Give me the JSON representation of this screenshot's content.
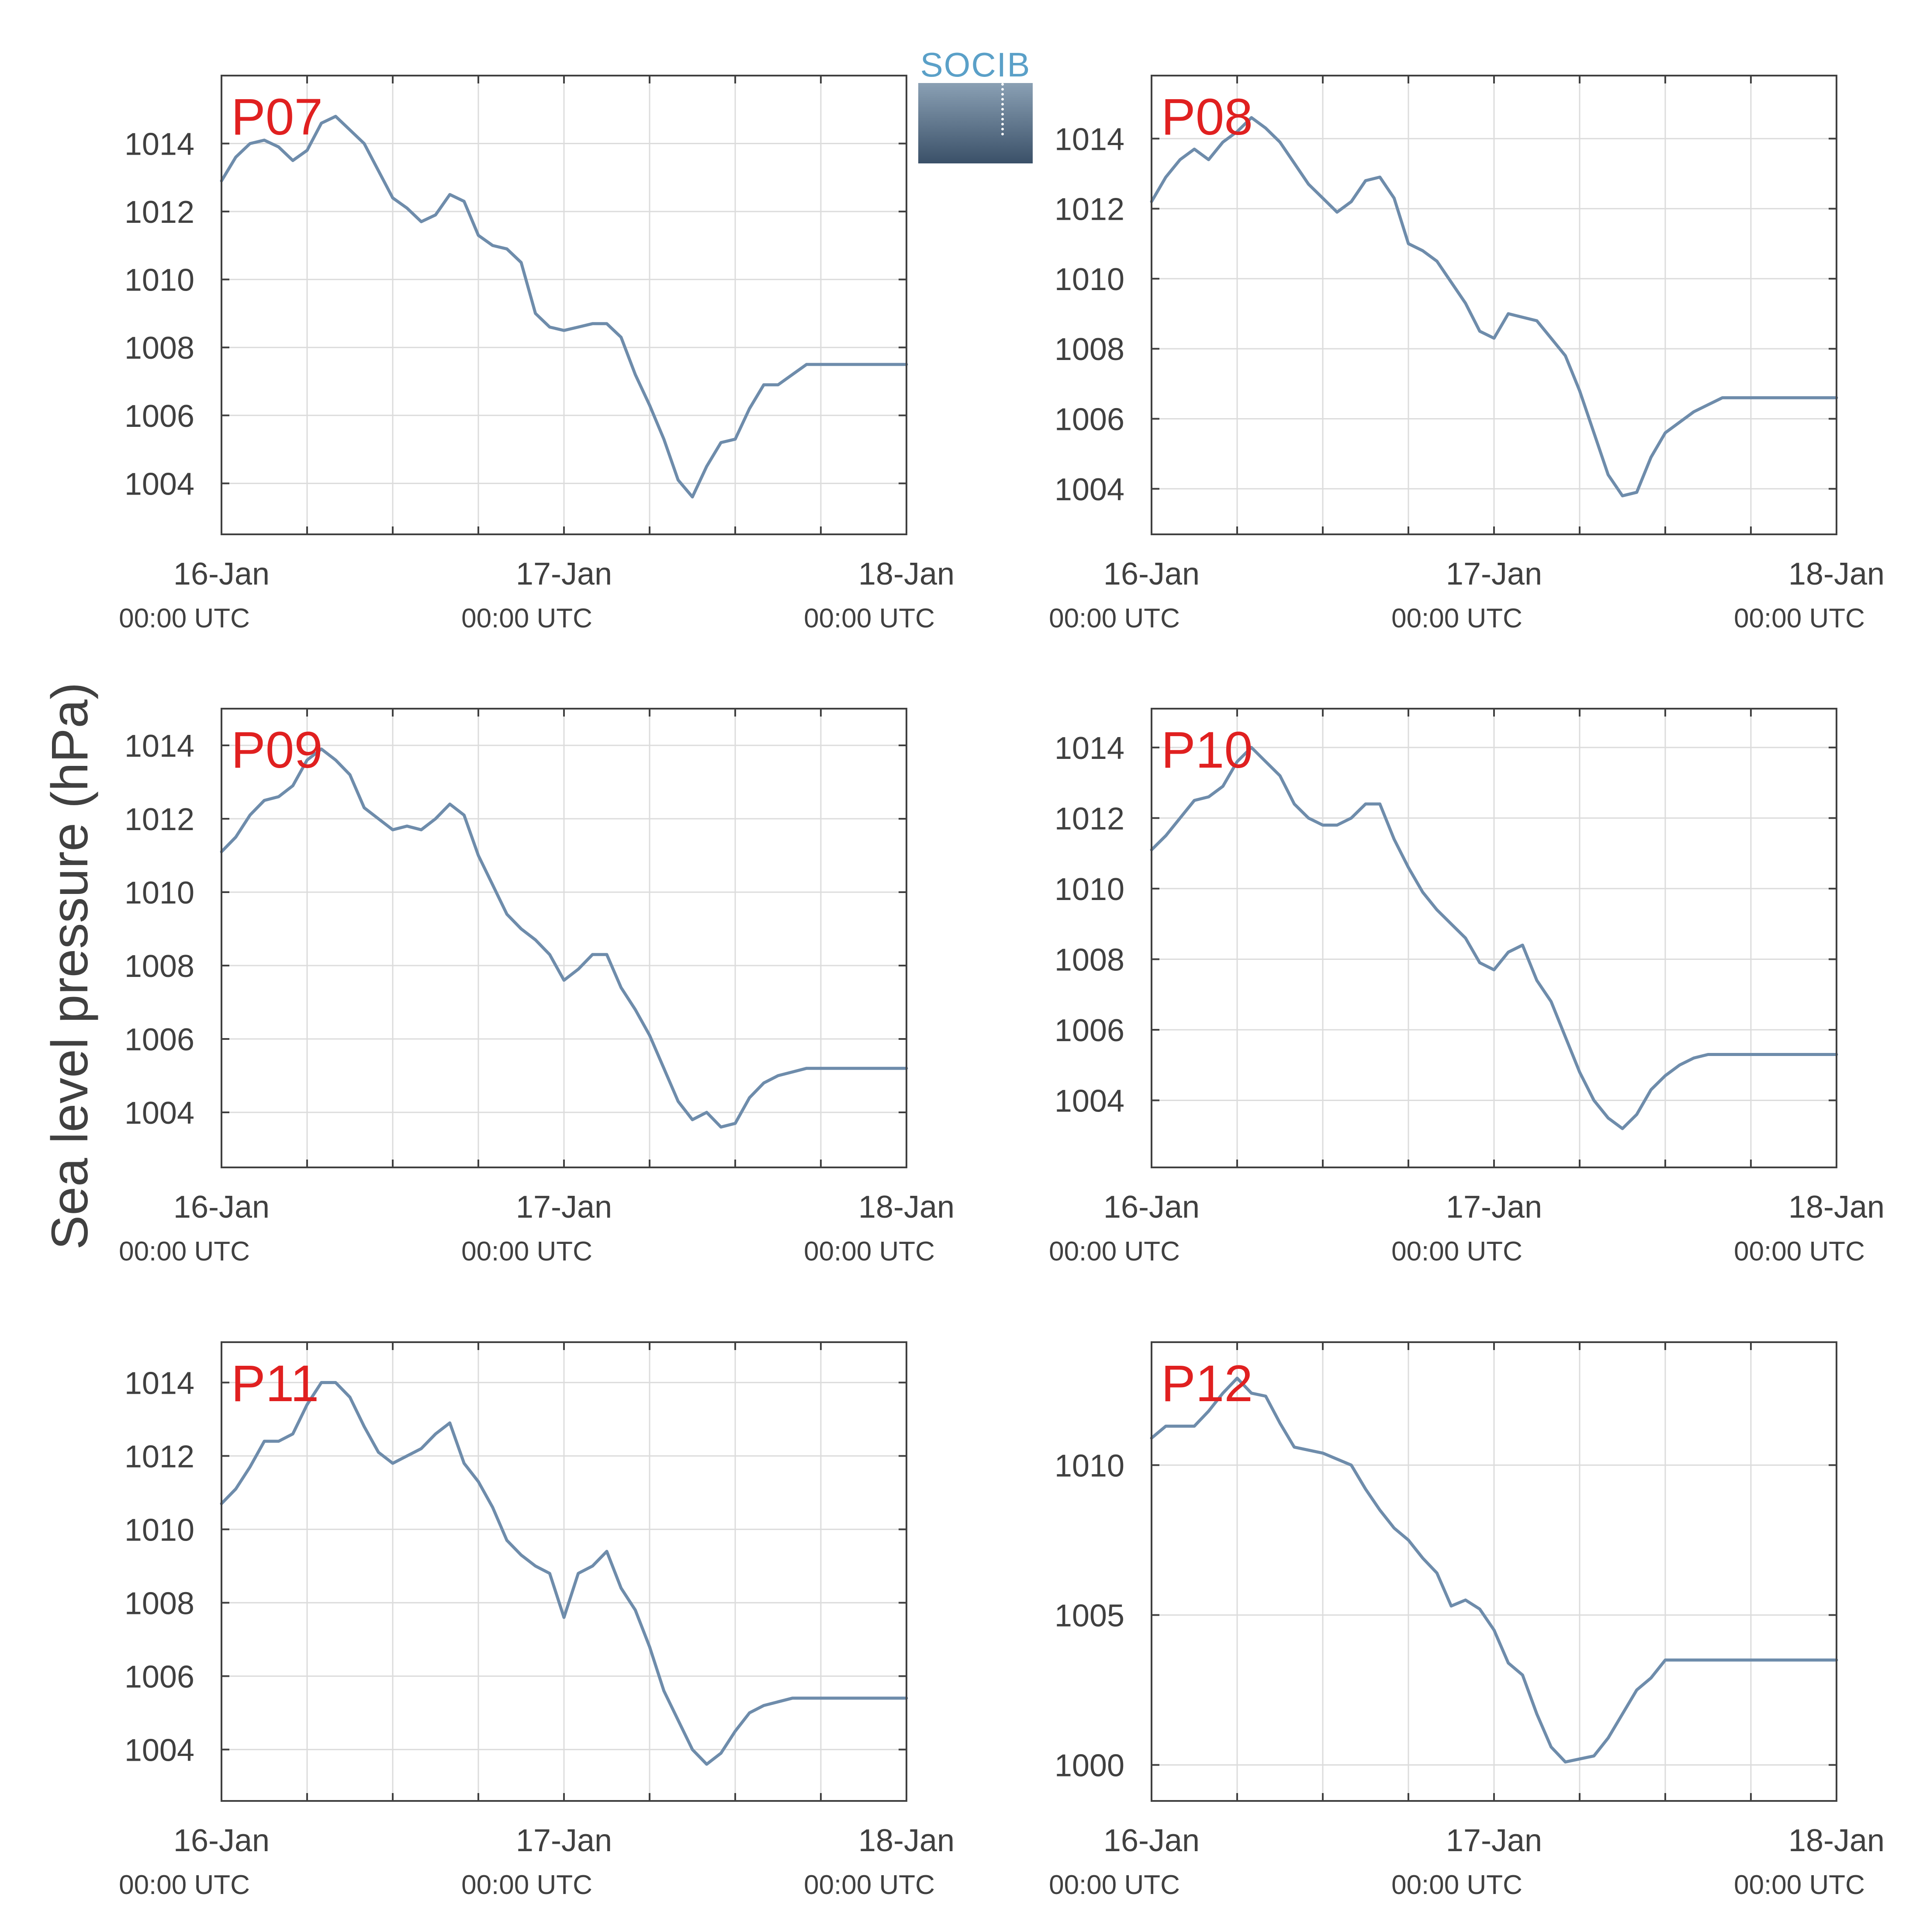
{
  "logo": {
    "text": "SOCIB"
  },
  "ylabel": "Sea level pressure (hPa)",
  "colors": {
    "line": "#6e8cab",
    "panel_label": "#e02020",
    "grid": "#dcdcdc",
    "axis": "#404040",
    "text": "#404040"
  },
  "chart_data": [
    {
      "type": "line",
      "panel": "P07",
      "x_ticks": [
        {
          "date": "16-Jan",
          "time": "00:00 UTC"
        },
        {
          "date": "17-Jan",
          "time": "00:00 UTC"
        },
        {
          "date": "18-Jan",
          "time": "00:00 UTC"
        }
      ],
      "xlim_hours": [
        0,
        48
      ],
      "ylim": [
        1002.5,
        1016
      ],
      "yticks": [
        1004,
        1006,
        1008,
        1010,
        1012,
        1014
      ],
      "grid": true,
      "x": [
        0,
        1,
        2,
        3,
        4,
        5,
        6,
        7,
        8,
        9,
        10,
        11,
        12,
        13,
        14,
        15,
        16,
        17,
        18,
        19,
        20,
        21,
        22,
        23,
        24,
        25,
        26,
        27,
        28,
        29,
        30,
        31,
        32,
        33,
        34,
        35,
        36,
        37,
        38,
        39,
        40,
        41,
        42,
        43,
        44,
        45,
        46,
        47,
        48
      ],
      "y": [
        1012.9,
        1013.6,
        1014.0,
        1014.1,
        1013.9,
        1013.5,
        1013.8,
        1014.6,
        1014.8,
        1014.4,
        1014.0,
        1013.2,
        1012.4,
        1012.1,
        1011.7,
        1011.9,
        1012.5,
        1012.3,
        1011.3,
        1011.0,
        1010.9,
        1010.5,
        1009.0,
        1008.6,
        1008.5,
        1008.6,
        1008.7,
        1008.7,
        1008.3,
        1007.2,
        1006.3,
        1005.3,
        1004.1,
        1003.6,
        1004.5,
        1005.2,
        1005.3,
        1006.2,
        1006.9,
        1006.9,
        1007.2,
        1007.5,
        1007.5,
        1007.5,
        1007.5,
        1007.5,
        1007.5,
        1007.5,
        1007.5
      ]
    },
    {
      "type": "line",
      "panel": "P08",
      "x_ticks": [
        {
          "date": "16-Jan",
          "time": "00:00 UTC"
        },
        {
          "date": "17-Jan",
          "time": "00:00 UTC"
        },
        {
          "date": "18-Jan",
          "time": "00:00 UTC"
        }
      ],
      "xlim_hours": [
        0,
        48
      ],
      "ylim": [
        1002.7,
        1015.8
      ],
      "yticks": [
        1004,
        1006,
        1008,
        1010,
        1012,
        1014
      ],
      "grid": true,
      "x": [
        0,
        1,
        2,
        3,
        4,
        5,
        6,
        7,
        8,
        9,
        10,
        11,
        12,
        13,
        14,
        15,
        16,
        17,
        18,
        19,
        20,
        21,
        22,
        23,
        24,
        25,
        26,
        27,
        28,
        29,
        30,
        31,
        32,
        33,
        34,
        35,
        36,
        37,
        38,
        39,
        40,
        41,
        42,
        43,
        44,
        45,
        46,
        47,
        48
      ],
      "y": [
        1012.2,
        1012.9,
        1013.4,
        1013.7,
        1013.4,
        1013.9,
        1014.2,
        1014.6,
        1014.3,
        1013.9,
        1013.3,
        1012.7,
        1012.3,
        1011.9,
        1012.2,
        1012.8,
        1012.9,
        1012.3,
        1011.0,
        1010.8,
        1010.5,
        1009.9,
        1009.3,
        1008.5,
        1008.3,
        1009.0,
        1008.9,
        1008.8,
        1008.3,
        1007.8,
        1006.8,
        1005.6,
        1004.4,
        1003.8,
        1003.9,
        1004.9,
        1005.6,
        1005.9,
        1006.2,
        1006.4,
        1006.6,
        1006.6,
        1006.6,
        1006.6,
        1006.6,
        1006.6,
        1006.6,
        1006.6,
        1006.6
      ]
    },
    {
      "type": "line",
      "panel": "P09",
      "x_ticks": [
        {
          "date": "16-Jan",
          "time": "00:00 UTC"
        },
        {
          "date": "17-Jan",
          "time": "00:00 UTC"
        },
        {
          "date": "18-Jan",
          "time": "00:00 UTC"
        }
      ],
      "xlim_hours": [
        0,
        48
      ],
      "ylim": [
        1002.5,
        1015
      ],
      "yticks": [
        1004,
        1006,
        1008,
        1010,
        1012,
        1014
      ],
      "grid": true,
      "x": [
        0,
        1,
        2,
        3,
        4,
        5,
        6,
        7,
        8,
        9,
        10,
        11,
        12,
        13,
        14,
        15,
        16,
        17,
        18,
        19,
        20,
        21,
        22,
        23,
        24,
        25,
        26,
        27,
        28,
        29,
        30,
        31,
        32,
        33,
        34,
        35,
        36,
        37,
        38,
        39,
        40,
        41,
        42,
        43,
        44,
        45,
        46,
        47,
        48
      ],
      "y": [
        1011.1,
        1011.5,
        1012.1,
        1012.5,
        1012.6,
        1012.9,
        1013.6,
        1013.9,
        1013.6,
        1013.2,
        1012.3,
        1012.0,
        1011.7,
        1011.8,
        1011.7,
        1012.0,
        1012.4,
        1012.1,
        1011.0,
        1010.2,
        1009.4,
        1009.0,
        1008.7,
        1008.3,
        1007.6,
        1007.9,
        1008.3,
        1008.3,
        1007.4,
        1006.8,
        1006.1,
        1005.2,
        1004.3,
        1003.8,
        1004.0,
        1003.6,
        1003.7,
        1004.4,
        1004.8,
        1005.0,
        1005.1,
        1005.2,
        1005.2,
        1005.2,
        1005.2,
        1005.2,
        1005.2,
        1005.2,
        1005.2
      ]
    },
    {
      "type": "line",
      "panel": "P10",
      "x_ticks": [
        {
          "date": "16-Jan",
          "time": "00:00 UTC"
        },
        {
          "date": "17-Jan",
          "time": "00:00 UTC"
        },
        {
          "date": "18-Jan",
          "time": "00:00 UTC"
        }
      ],
      "xlim_hours": [
        0,
        48
      ],
      "ylim": [
        1002.1,
        1015.1
      ],
      "yticks": [
        1004,
        1006,
        1008,
        1010,
        1012,
        1014
      ],
      "grid": true,
      "x": [
        0,
        1,
        2,
        3,
        4,
        5,
        6,
        7,
        8,
        9,
        10,
        11,
        12,
        13,
        14,
        15,
        16,
        17,
        18,
        19,
        20,
        21,
        22,
        23,
        24,
        25,
        26,
        27,
        28,
        29,
        30,
        31,
        32,
        33,
        34,
        35,
        36,
        37,
        38,
        39,
        40,
        41,
        42,
        43,
        44,
        45,
        46,
        47,
        48
      ],
      "y": [
        1011.1,
        1011.5,
        1012.0,
        1012.5,
        1012.6,
        1012.9,
        1013.6,
        1014.0,
        1013.6,
        1013.2,
        1012.4,
        1012.0,
        1011.8,
        1011.8,
        1012.0,
        1012.4,
        1012.4,
        1011.4,
        1010.6,
        1009.9,
        1009.4,
        1009.0,
        1008.6,
        1007.9,
        1007.7,
        1008.2,
        1008.4,
        1007.4,
        1006.8,
        1005.8,
        1004.8,
        1004.0,
        1003.5,
        1003.2,
        1003.6,
        1004.3,
        1004.7,
        1005.0,
        1005.2,
        1005.3,
        1005.3,
        1005.3,
        1005.3,
        1005.3,
        1005.3,
        1005.3,
        1005.3,
        1005.3,
        1005.3
      ]
    },
    {
      "type": "line",
      "panel": "P11",
      "x_ticks": [
        {
          "date": "16-Jan",
          "time": "00:00 UTC"
        },
        {
          "date": "17-Jan",
          "time": "00:00 UTC"
        },
        {
          "date": "18-Jan",
          "time": "00:00 UTC"
        }
      ],
      "xlim_hours": [
        0,
        48
      ],
      "ylim": [
        1002.6,
        1015.1
      ],
      "yticks": [
        1004,
        1006,
        1008,
        1010,
        1012,
        1014
      ],
      "grid": true,
      "x": [
        0,
        1,
        2,
        3,
        4,
        5,
        6,
        7,
        8,
        9,
        10,
        11,
        12,
        13,
        14,
        15,
        16,
        17,
        18,
        19,
        20,
        21,
        22,
        23,
        24,
        25,
        26,
        27,
        28,
        29,
        30,
        31,
        32,
        33,
        34,
        35,
        36,
        37,
        38,
        39,
        40,
        41,
        42,
        43,
        44,
        45,
        46,
        47,
        48
      ],
      "y": [
        1010.7,
        1011.1,
        1011.7,
        1012.4,
        1012.4,
        1012.6,
        1013.4,
        1014.0,
        1014.0,
        1013.6,
        1012.8,
        1012.1,
        1011.8,
        1012.0,
        1012.2,
        1012.6,
        1012.9,
        1011.8,
        1011.3,
        1010.6,
        1009.7,
        1009.3,
        1009.0,
        1008.8,
        1007.6,
        1008.8,
        1009.0,
        1009.4,
        1008.4,
        1007.8,
        1006.8,
        1005.6,
        1004.8,
        1004.0,
        1003.6,
        1003.9,
        1004.5,
        1005.0,
        1005.2,
        1005.3,
        1005.4,
        1005.4,
        1005.4,
        1005.4,
        1005.4,
        1005.4,
        1005.4,
        1005.4,
        1005.4
      ]
    },
    {
      "type": "line",
      "panel": "P12",
      "x_ticks": [
        {
          "date": "16-Jan",
          "time": "00:00 UTC"
        },
        {
          "date": "17-Jan",
          "time": "00:00 UTC"
        },
        {
          "date": "18-Jan",
          "time": "00:00 UTC"
        }
      ],
      "xlim_hours": [
        0,
        48
      ],
      "ylim": [
        998.8,
        1014.1
      ],
      "yticks": [
        1000,
        1005,
        1010
      ],
      "grid": true,
      "x": [
        0,
        1,
        2,
        3,
        4,
        5,
        6,
        7,
        8,
        9,
        10,
        11,
        12,
        13,
        14,
        15,
        16,
        17,
        18,
        19,
        20,
        21,
        22,
        23,
        24,
        25,
        26,
        27,
        28,
        29,
        30,
        31,
        32,
        33,
        34,
        35,
        36,
        37,
        38,
        39,
        40,
        41,
        42,
        43,
        44,
        45,
        46,
        47,
        48
      ],
      "y": [
        1010.9,
        1011.3,
        1011.3,
        1011.3,
        1011.8,
        1012.4,
        1012.9,
        1012.4,
        1012.3,
        1011.4,
        1010.6,
        1010.5,
        1010.4,
        1010.2,
        1010.0,
        1009.2,
        1008.5,
        1007.9,
        1007.5,
        1006.9,
        1006.4,
        1005.3,
        1005.5,
        1005.2,
        1004.5,
        1003.4,
        1003.0,
        1001.7,
        1000.6,
        1000.1,
        1000.2,
        1000.3,
        1000.9,
        1001.7,
        1002.5,
        1002.9,
        1003.5,
        1003.5,
        1003.5,
        1003.5,
        1003.5,
        1003.5,
        1003.5,
        1003.5,
        1003.5,
        1003.5,
        1003.5,
        1003.5,
        1003.5
      ]
    }
  ]
}
